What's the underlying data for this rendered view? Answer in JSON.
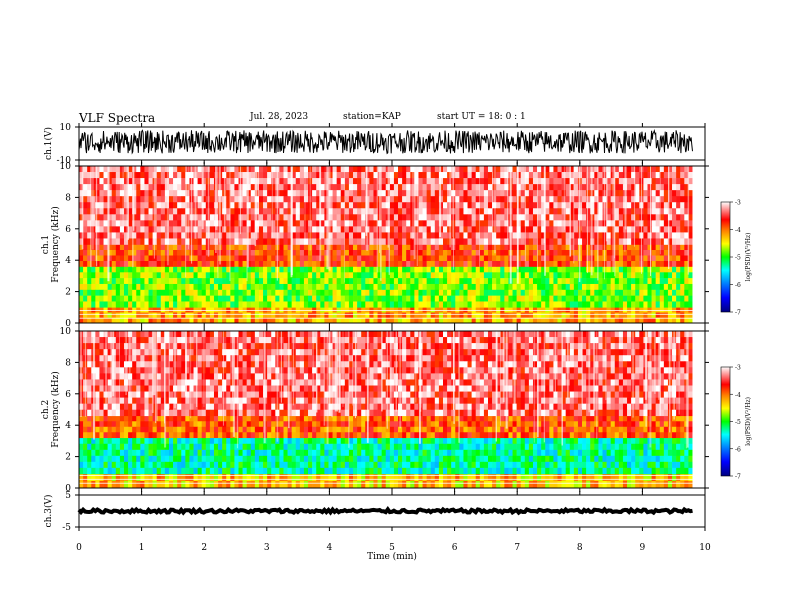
{
  "header": {
    "title": "VLF Spectra",
    "date": "Jul. 28, 2023",
    "station": "station=KAP",
    "start": "start UT =  18: 0 : 1"
  },
  "colors": {
    "background": "#ffffff",
    "axis": "#000000",
    "waveform": "#000000",
    "spectrogram_scale": [
      "#000080",
      "#0000ff",
      "#0080ff",
      "#00ffff",
      "#00ff00",
      "#ffff00",
      "#ff8000",
      "#ff0000",
      "#ffffff"
    ]
  },
  "chart_data": [
    {
      "type": "line",
      "panel": "ch1-waveform",
      "ylabel": "ch.1(V)",
      "ylim": [
        -10,
        10
      ],
      "yticks": [
        "10",
        "-10"
      ],
      "xlim": [
        0,
        10
      ],
      "series": [
        {
          "description_level": "dense waveform, roughly -5 to 8 V"
        }
      ],
      "trace": {
        "center": 1,
        "amplitude": 7,
        "tmax": 9.8
      }
    },
    {
      "type": "heatmap",
      "panel": "ch1-spectrogram",
      "ylabel": "ch.1\nFrequency (kHz)",
      "ylim": [
        0,
        10
      ],
      "yticks": [
        "0",
        "2",
        "4",
        "6",
        "8",
        "10"
      ],
      "xlim": [
        0,
        10
      ],
      "data_tmax": 9.8,
      "colorbar": {
        "label": "log(PSD)(V²/Hz)",
        "range": [
          -7,
          -3
        ],
        "ticks": [
          "-3",
          "-4",
          "-5",
          "-6",
          "-7"
        ]
      },
      "bands": [
        {
          "f": [
            0,
            1
          ],
          "level": -4.2
        },
        {
          "f": [
            1,
            3.6
          ],
          "level": -4.8
        },
        {
          "f": [
            3.6,
            5
          ],
          "level": -3.8
        },
        {
          "f": [
            5,
            10
          ],
          "level": -3.4
        }
      ]
    },
    {
      "type": "heatmap",
      "panel": "ch2-spectrogram",
      "ylabel": "ch.2\nFrequency (kHz)",
      "ylim": [
        0,
        10
      ],
      "yticks": [
        "0",
        "2",
        "4",
        "6",
        "8",
        "10"
      ],
      "xlim": [
        0,
        10
      ],
      "data_tmax": 9.8,
      "colorbar": {
        "label": "log(PSD)(V²/Hz)",
        "range": [
          -7,
          -3
        ],
        "ticks": [
          "-3",
          "-4",
          "-5",
          "-6",
          "-7"
        ]
      },
      "bands": [
        {
          "f": [
            0,
            0.9
          ],
          "level": -4.3
        },
        {
          "f": [
            0.9,
            3.2
          ],
          "level": -5.3
        },
        {
          "f": [
            3.2,
            4.6
          ],
          "level": -3.9
        },
        {
          "f": [
            4.6,
            10
          ],
          "level": -3.4
        }
      ]
    },
    {
      "type": "line",
      "panel": "ch3-waveform",
      "ylabel": "ch.3(V)",
      "ylim": [
        -5,
        5
      ],
      "yticks": [
        "5",
        "-5"
      ],
      "xlim": [
        0,
        10
      ],
      "trace": {
        "center": 0,
        "amplitude": 0.5,
        "tmax": 9.8
      }
    }
  ],
  "xaxis": {
    "label": "Time (min)",
    "ticks": [
      "0",
      "1",
      "2",
      "3",
      "4",
      "5",
      "6",
      "7",
      "8",
      "9",
      "10"
    ]
  }
}
